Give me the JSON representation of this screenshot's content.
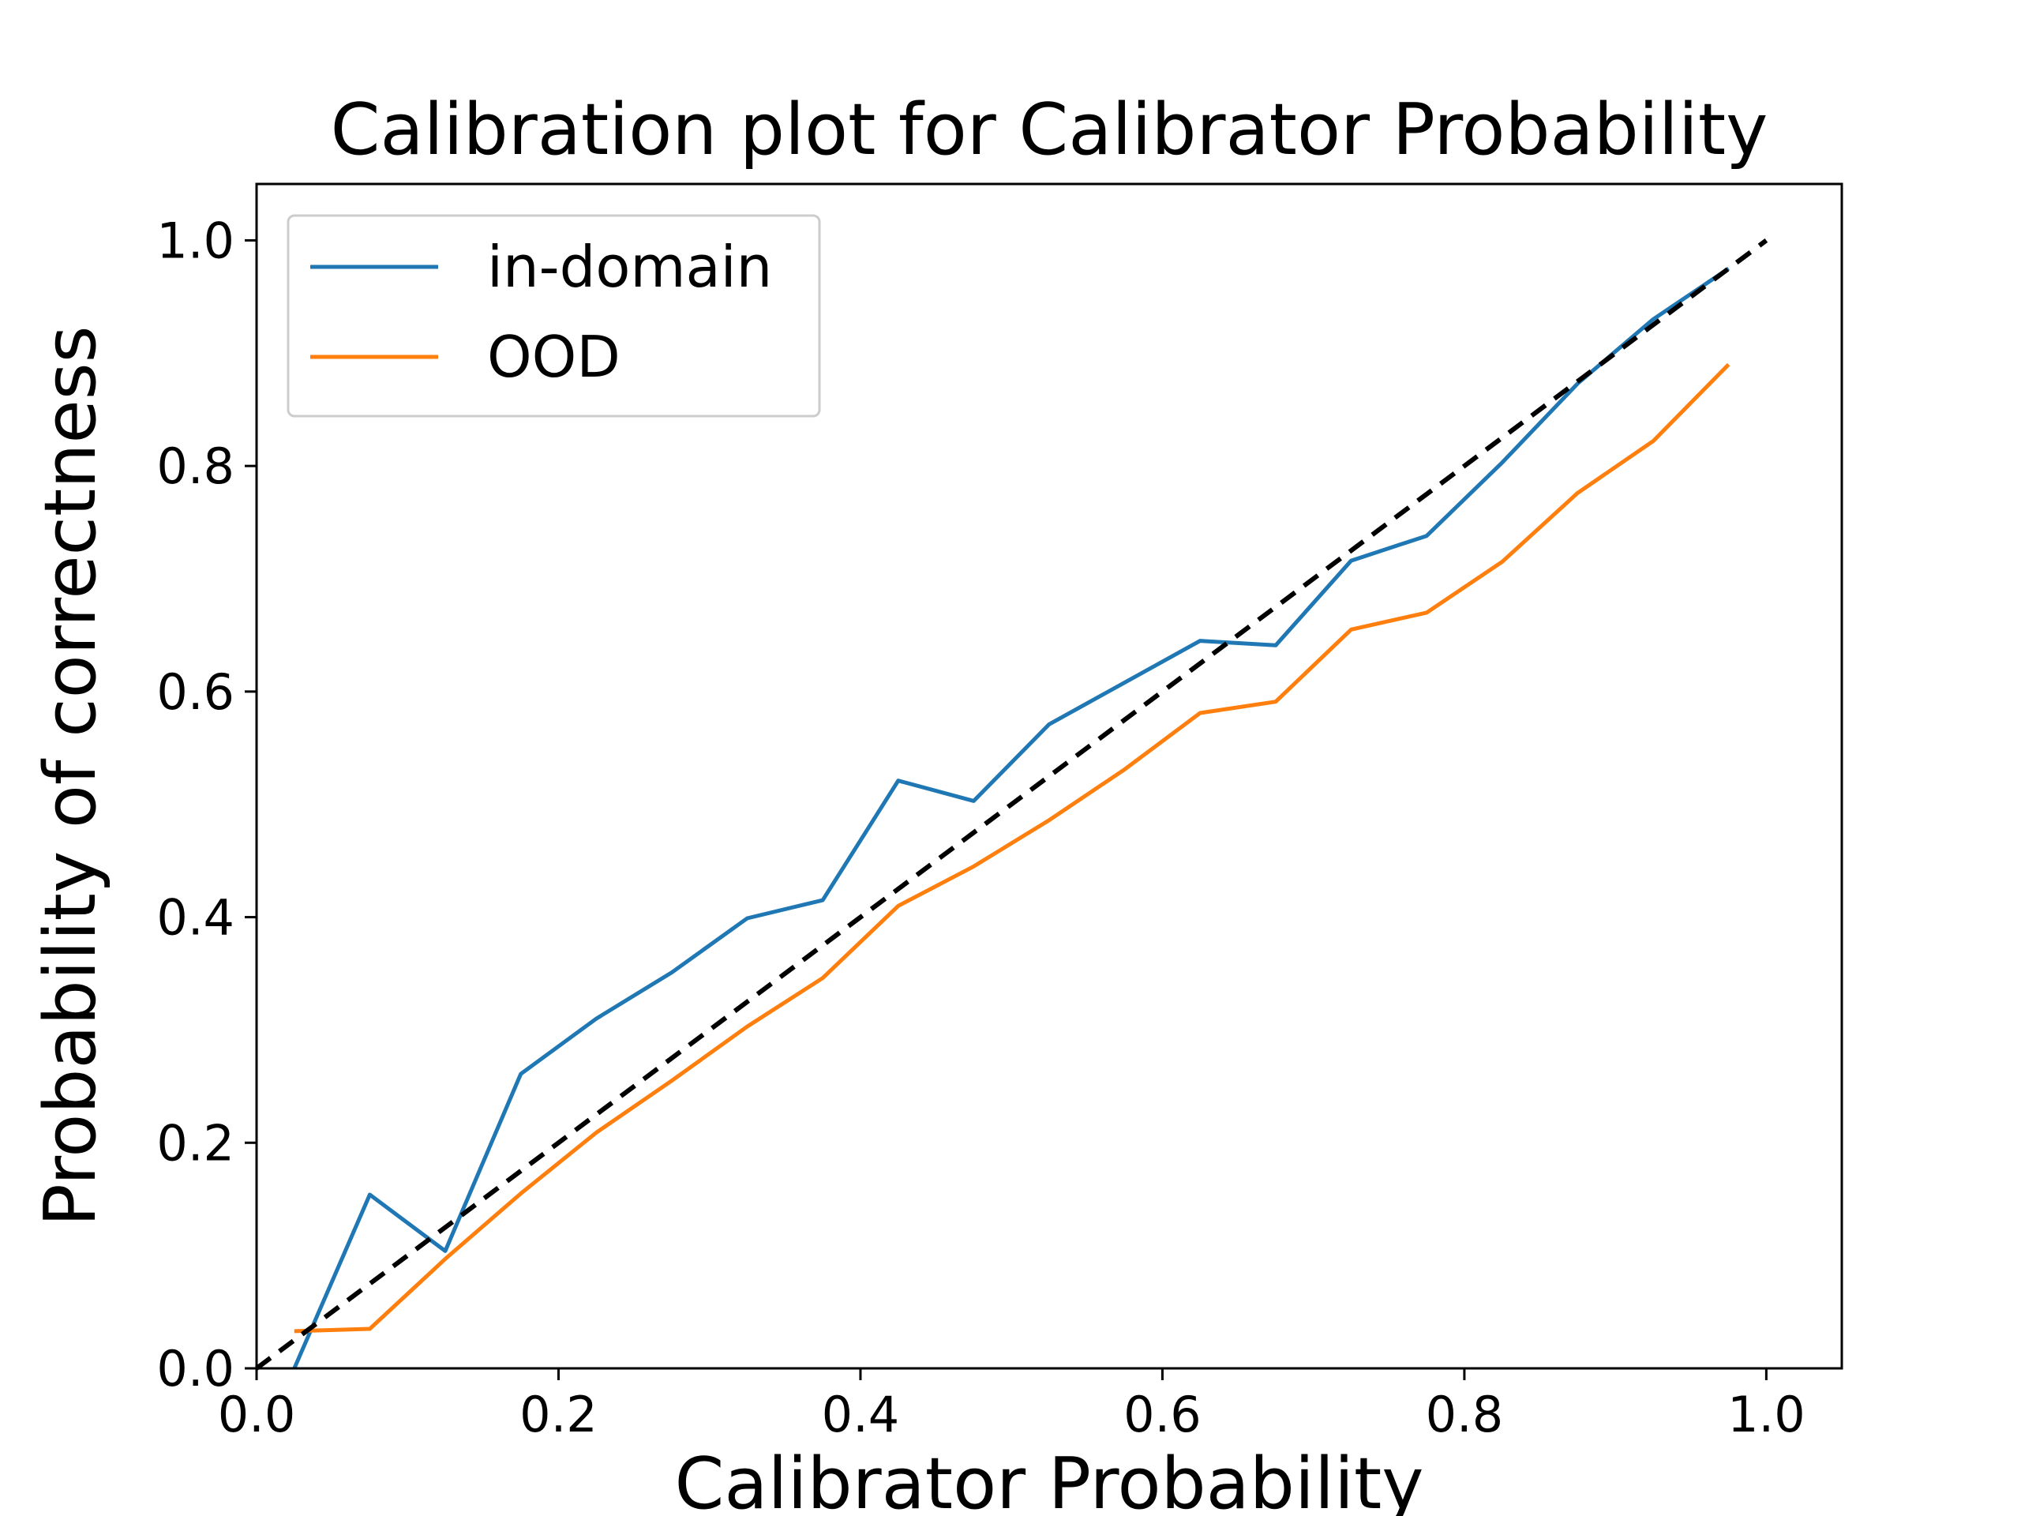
{
  "chart_data": {
    "type": "line",
    "title": "Calibration plot for Calibrator Probability",
    "xlabel": "Calibrator Probability",
    "ylabel": "Probability of correctness",
    "xlim": [
      0.0,
      1.05
    ],
    "ylim": [
      0.0,
      1.05
    ],
    "xticks": [
      "0.0",
      "0.2",
      "0.4",
      "0.6",
      "0.8",
      "1.0"
    ],
    "yticks": [
      "0.0",
      "0.2",
      "0.4",
      "0.6",
      "0.8",
      "1.0"
    ],
    "grid": false,
    "legend_position": "upper-left",
    "reference_line": {
      "x": [
        0.0,
        1.0
      ],
      "y": [
        0.0,
        1.0
      ],
      "style": "dashed",
      "color": "#000000"
    },
    "x": [
      0.025,
      0.075,
      0.125,
      0.175,
      0.225,
      0.275,
      0.325,
      0.375,
      0.425,
      0.475,
      0.525,
      0.575,
      0.625,
      0.675,
      0.725,
      0.775,
      0.825,
      0.875,
      0.925,
      0.975
    ],
    "series": [
      {
        "name": "in-domain",
        "color": "#1f77b4",
        "values": [
          0.0,
          0.154,
          0.104,
          0.261,
          0.31,
          0.351,
          0.399,
          0.415,
          0.521,
          0.503,
          0.571,
          0.608,
          0.645,
          0.641,
          0.716,
          0.738,
          0.803,
          0.873,
          0.93,
          0.975
        ]
      },
      {
        "name": "OOD",
        "color": "#ff7f0e",
        "values": [
          0.033,
          0.035,
          0.097,
          0.155,
          0.209,
          0.255,
          0.303,
          0.346,
          0.41,
          0.445,
          0.486,
          0.531,
          0.581,
          0.591,
          0.655,
          0.67,
          0.715,
          0.776,
          0.822,
          0.89
        ]
      }
    ]
  }
}
